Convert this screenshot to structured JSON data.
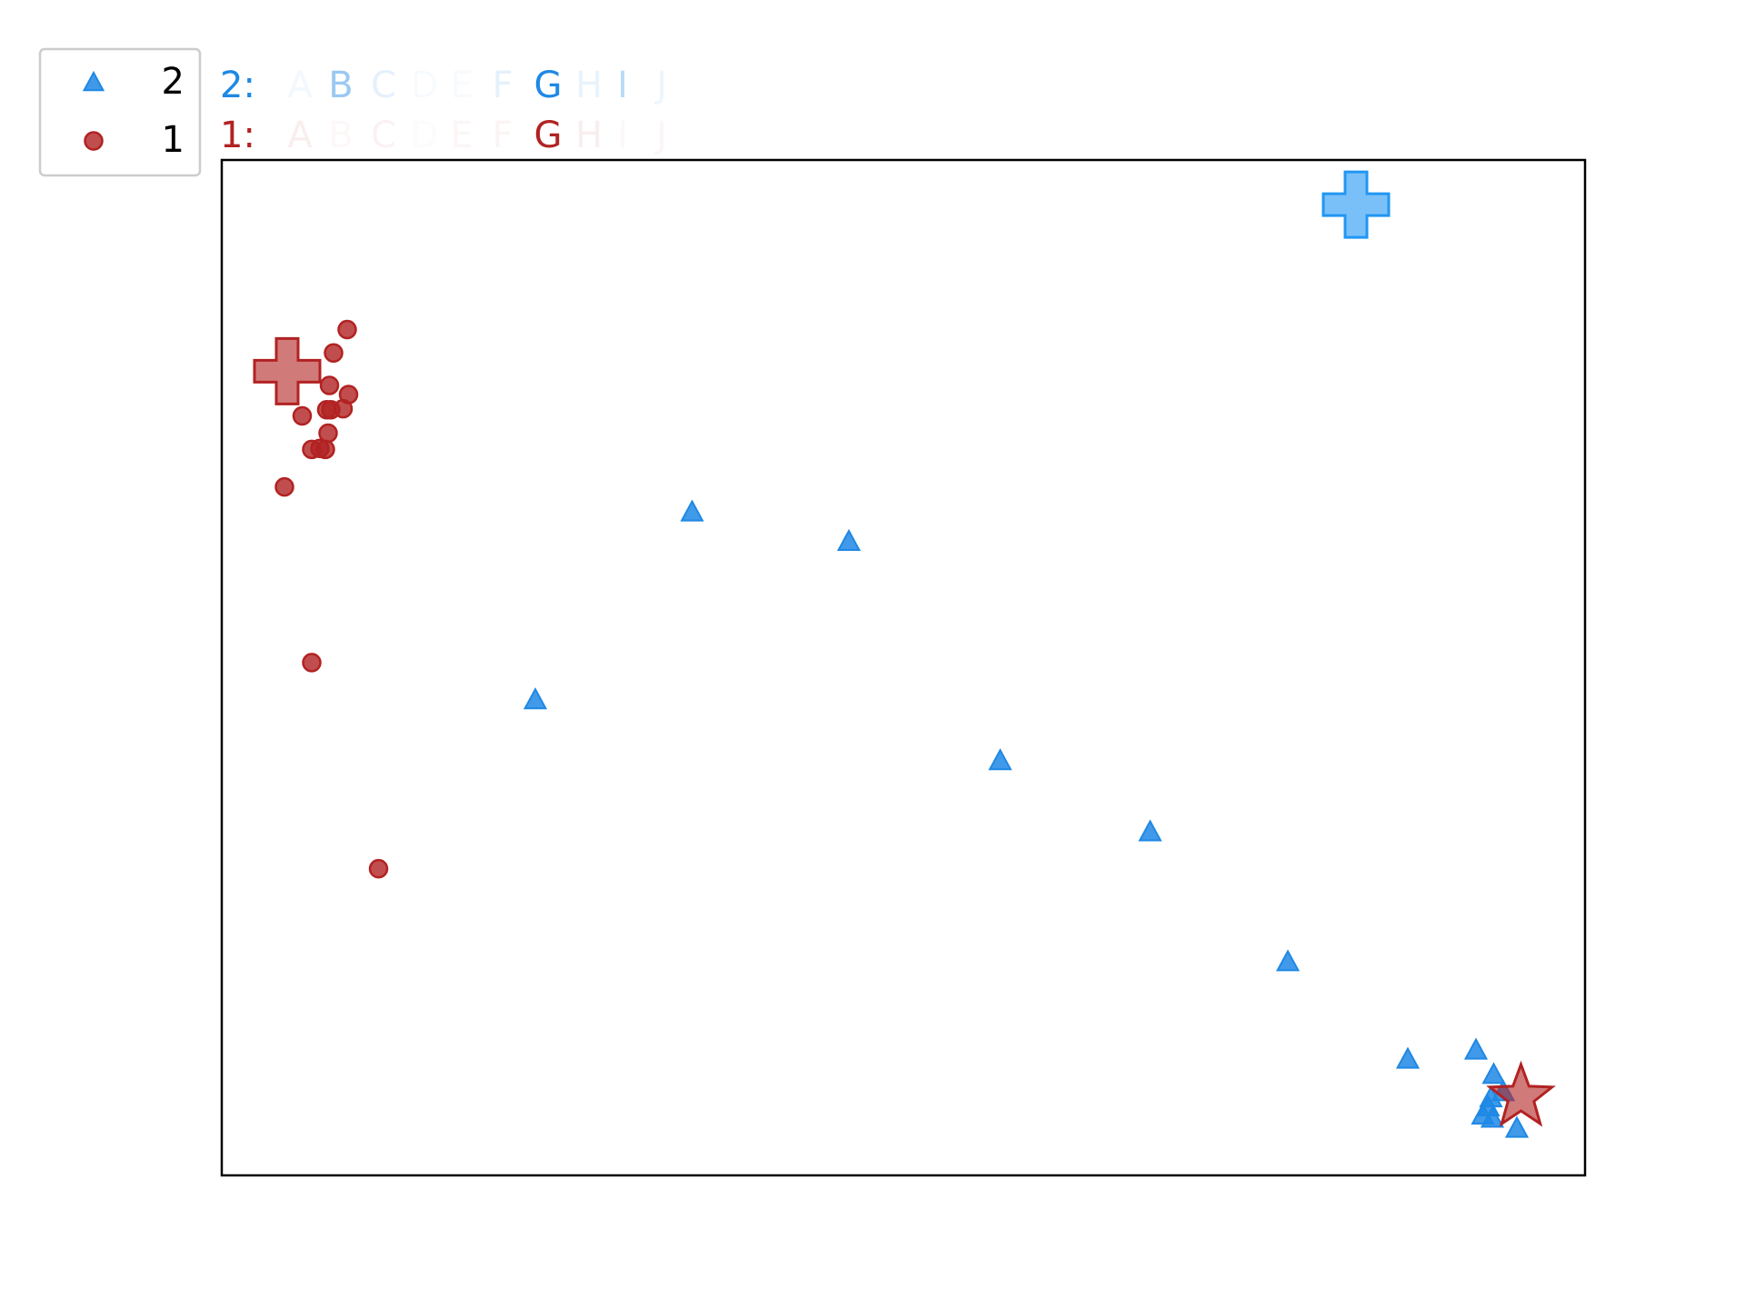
{
  "chart_data": {
    "type": "scatter",
    "title": "",
    "xlabel": "",
    "ylabel": "",
    "grid": false,
    "xlim": [
      0,
      100
    ],
    "ylim": [
      0,
      100
    ],
    "legend": {
      "placement": "top-left, outside plot",
      "entries": [
        {
          "label": "2",
          "marker": "triangle",
          "color": "#1E88E5"
        },
        {
          "label": "1",
          "marker": "circle",
          "color": "#B22222"
        }
      ]
    },
    "letter_rows": [
      {
        "prefix": "2:",
        "color": "#1E88E5",
        "letters": [
          {
            "char": "A",
            "opacity": 0.06
          },
          {
            "char": "B",
            "opacity": 0.45
          },
          {
            "char": "C",
            "opacity": 0.12
          },
          {
            "char": "D",
            "opacity": 0.03
          },
          {
            "char": "E",
            "opacity": 0.03
          },
          {
            "char": "F",
            "opacity": 0.12
          },
          {
            "char": "G",
            "opacity": 1.0
          },
          {
            "char": "H",
            "opacity": 0.1
          },
          {
            "char": "I",
            "opacity": 0.3
          },
          {
            "char": "J",
            "opacity": 0.08
          }
        ]
      },
      {
        "prefix": "1:",
        "color": "#B22222",
        "letters": [
          {
            "char": "A",
            "opacity": 0.08
          },
          {
            "char": "B",
            "opacity": 0.03
          },
          {
            "char": "C",
            "opacity": 0.06
          },
          {
            "char": "D",
            "opacity": 0.02
          },
          {
            "char": "E",
            "opacity": 0.04
          },
          {
            "char": "F",
            "opacity": 0.05
          },
          {
            "char": "G",
            "opacity": 1.0
          },
          {
            "char": "H",
            "opacity": 0.08
          },
          {
            "char": "I",
            "opacity": 0.03
          },
          {
            "char": "J",
            "opacity": 0.04
          }
        ]
      }
    ],
    "series": [
      {
        "name": "2",
        "marker": "triangle",
        "color": "#1E88E5",
        "x": [
          34.5,
          23.0,
          46.0,
          57.1,
          68.1,
          78.2,
          87.0,
          92.0,
          93.3,
          94.0,
          93.1,
          92.9,
          92.5,
          93.2,
          95.0
        ],
        "y": [
          65.3,
          46.8,
          62.4,
          40.8,
          33.8,
          21.0,
          11.4,
          12.3,
          9.9,
          8.2,
          7.6,
          6.7,
          5.9,
          5.6,
          4.6
        ]
      },
      {
        "name": "1",
        "marker": "circle",
        "color": "#B22222",
        "x": [
          9.2,
          8.2,
          7.9,
          9.3,
          8.9,
          8.0,
          7.7,
          5.9,
          7.8,
          7.2,
          7.6,
          6.6,
          4.6,
          6.6,
          11.5
        ],
        "y": [
          83.3,
          81.0,
          77.8,
          76.9,
          75.5,
          75.4,
          75.4,
          74.8,
          73.1,
          71.6,
          71.5,
          71.5,
          67.8,
          50.5,
          30.2
        ]
      }
    ],
    "special_markers": [
      {
        "series": "2",
        "shape": "plus",
        "color": "#2196F3",
        "x": 83.2,
        "y": 95.6
      },
      {
        "series": "1",
        "shape": "plus",
        "color": "#B22222",
        "x": 4.8,
        "y": 79.2
      },
      {
        "series": "1",
        "shape": "star",
        "color": "#B22222",
        "x": 95.3,
        "y": 7.7
      }
    ]
  }
}
